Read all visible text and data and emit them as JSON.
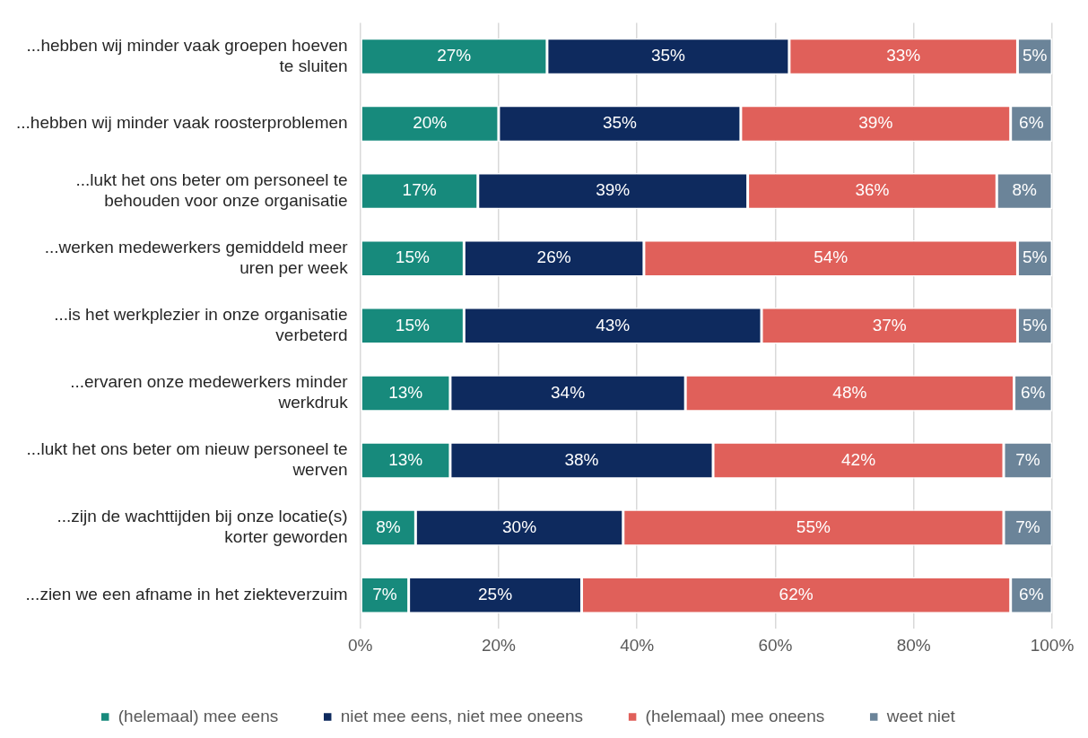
{
  "chart_data": {
    "type": "bar",
    "orientation": "horizontal",
    "stacked": true,
    "categories": [
      "...hebben wij minder vaak groepen hoeven te sluiten",
      "...hebben wij minder vaak roosterproblemen",
      "...lukt het ons beter om personeel te behouden voor onze organisatie",
      "...werken medewerkers gemiddeld meer uren per week",
      "...is het werkplezier in onze organisatie verbeterd",
      "...ervaren onze medewerkers minder werkdruk",
      "...lukt het ons beter om nieuw personeel te werven",
      "...zijn de wachttijden bij onze locatie(s) korter geworden",
      "...zien we een afname in het ziekteverzuim"
    ],
    "series": [
      {
        "name": "(helemaal) mee eens",
        "color": "#178a7c",
        "values": [
          27,
          20,
          17,
          15,
          15,
          13,
          13,
          8,
          7
        ],
        "value_labels": [
          "27%",
          "20%",
          "17%",
          "15%",
          "15%",
          "13%",
          "13%",
          "8%",
          "7%"
        ]
      },
      {
        "name": "niet mee eens, niet mee oneens",
        "color": "#0e2a5e",
        "values": [
          35,
          35,
          39,
          26,
          43,
          34,
          38,
          30,
          25
        ],
        "value_labels": [
          "35%",
          "35%",
          "39%",
          "26%",
          "43%",
          "34%",
          "38%",
          "30%",
          "25%"
        ]
      },
      {
        "name": "(helemaal) mee oneens",
        "color": "#e0605a",
        "values": [
          33,
          39,
          36,
          54,
          37,
          47.5,
          42,
          55,
          62
        ],
        "value_labels": [
          "33%",
          "39%",
          "36%",
          "54%",
          "37%",
          "48%",
          "42%",
          "55%",
          "62%"
        ]
      },
      {
        "name": "weet niet",
        "color": "#6b8499",
        "values": [
          5,
          6,
          8,
          5,
          5,
          5.5,
          7,
          7,
          6
        ],
        "value_labels": [
          "5%",
          "6%",
          "8%",
          "5%",
          "5%",
          "6%",
          "7%",
          "7%",
          "6%"
        ]
      }
    ],
    "xlim": [
      0,
      100
    ],
    "xticks": [
      {
        "value": 0,
        "label": "0%"
      },
      {
        "value": 20,
        "label": "20%"
      },
      {
        "value": 40,
        "label": "40%"
      },
      {
        "value": 60,
        "label": "60%"
      },
      {
        "value": 80,
        "label": "80%"
      },
      {
        "value": 100,
        "label": "100%"
      }
    ],
    "grid": "x",
    "legend": "bottom"
  }
}
